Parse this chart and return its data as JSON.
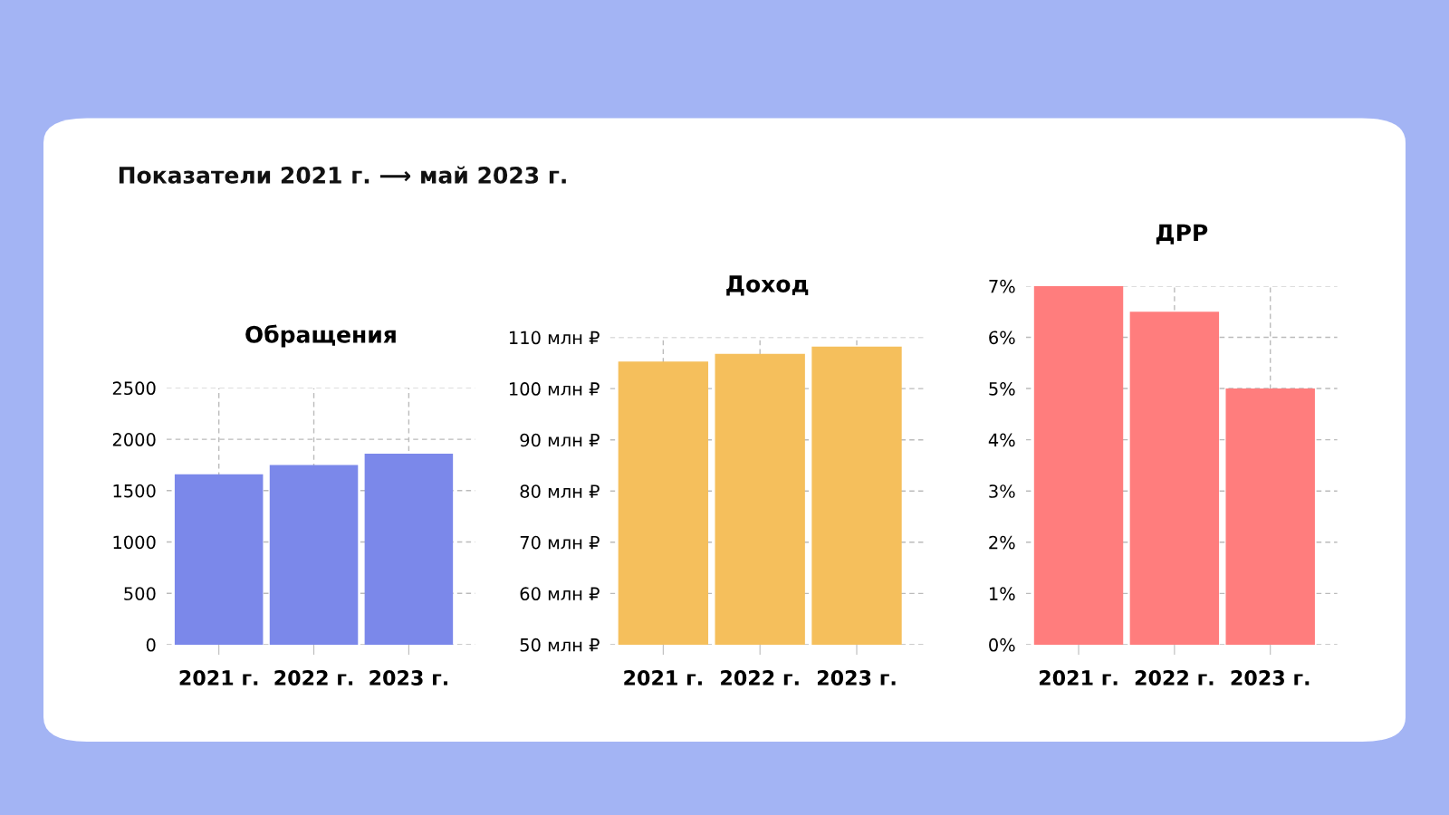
{
  "chart_data": [
    {
      "type": "other",
      "title": "Показатели 2021 г. ⟶ май 2023 г."
    },
    {
      "type": "bar",
      "title": "Обращения",
      "categories": [
        "2021 г.",
        "2022 г.",
        "2023 г."
      ],
      "values": [
        1660,
        1750,
        1860
      ],
      "color": "#7b88ea",
      "ylim": [
        0,
        2500
      ],
      "yticks": [
        0,
        500,
        1000,
        1500,
        2000,
        2500
      ],
      "grid": true
    },
    {
      "type": "bar",
      "title": "Доход",
      "categories": [
        "2021 г.",
        "2022 г.",
        "2023 г."
      ],
      "values": [
        105.3,
        106.8,
        108.2
      ],
      "color": "#f5bf5c",
      "ylim": [
        50,
        110
      ],
      "yticks": [
        {
          "value": 50,
          "label": "50 млн ₽"
        },
        {
          "value": 60,
          "label": "60 млн ₽"
        },
        {
          "value": 70,
          "label": "70 млн ₽"
        },
        {
          "value": 80,
          "label": "80 млн ₽"
        },
        {
          "value": 90,
          "label": "90 млн ₽"
        },
        {
          "value": 100,
          "label": "100 млн ₽"
        },
        {
          "value": 110,
          "label": "110 млн ₽"
        }
      ],
      "grid": true
    },
    {
      "type": "bar",
      "title": "ДРР",
      "categories": [
        "2021 г.",
        "2022 г.",
        "2023 г."
      ],
      "values": [
        7.0,
        6.5,
        5.0
      ],
      "color": "#ff7d7d",
      "ylim": [
        0,
        7
      ],
      "yticks": [
        {
          "value": 0,
          "label": "0%"
        },
        {
          "value": 1,
          "label": "1%"
        },
        {
          "value": 2,
          "label": "2%"
        },
        {
          "value": 3,
          "label": "3%"
        },
        {
          "value": 4,
          "label": "4%"
        },
        {
          "value": 5,
          "label": "5%"
        },
        {
          "value": 6,
          "label": "6%"
        },
        {
          "value": 7,
          "label": "7%"
        }
      ],
      "grid": true
    }
  ]
}
